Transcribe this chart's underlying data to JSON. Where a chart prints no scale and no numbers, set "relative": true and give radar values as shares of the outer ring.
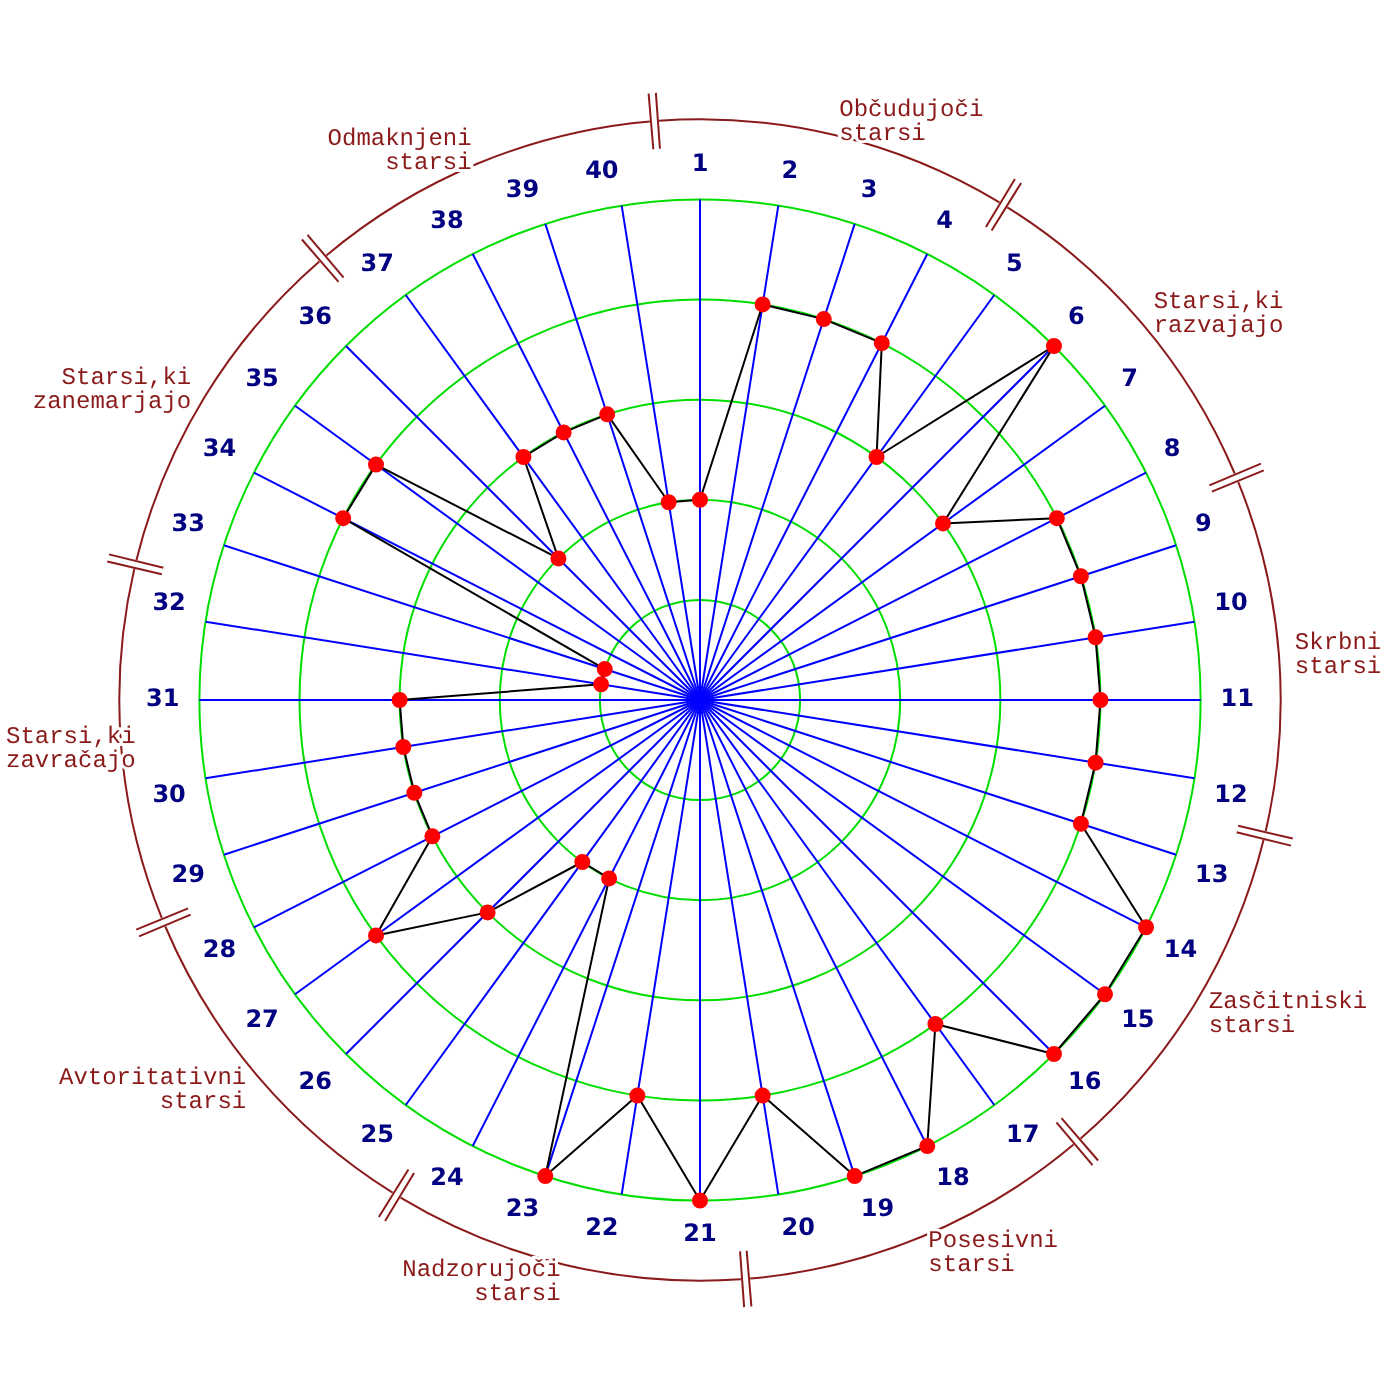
{
  "chart_data": {
    "type": "radar",
    "relative": true,
    "grid": true,
    "legend": false,
    "marker": "circle",
    "line_style": "solid",
    "categories": [
      "1",
      "2",
      "3",
      "4",
      "5",
      "6",
      "7",
      "8",
      "9",
      "10",
      "11",
      "12",
      "13",
      "14",
      "15",
      "16",
      "17",
      "18",
      "19",
      "20",
      "21",
      "22",
      "23",
      "24",
      "25",
      "26",
      "27",
      "28",
      "29",
      "30",
      "31",
      "32",
      "33",
      "34",
      "35",
      "36",
      "37",
      "38",
      "39",
      "40"
    ],
    "series": [
      {
        "color": "#000000",
        "colors": [
          "#ff0000",
          "#ff0000",
          "#ff0000",
          "#ff0000",
          "#ff0000",
          "#ff0000",
          "#ff0000",
          "#ff0000",
          "#ff0000",
          "#ff0000",
          "#ff0000",
          "#ff0000",
          "#ff0000",
          "#ff0000",
          "#ff0000",
          "#ff0000",
          "#ff0000",
          "#ff0000",
          "#ff0000",
          "#ff0000",
          "#ff0000",
          "#ff0000",
          "#ff0000",
          "#ff0000",
          "#ff0000",
          "#ff0000",
          "#ff0000",
          "#ff0000",
          "#ff0000",
          "#ff0000",
          "#ff0000",
          "#ff0000",
          "#ff0000",
          "#ff0000",
          "#ff0000",
          "#ff0000",
          "#ff0000",
          "#ff0000",
          "#ff0000",
          "#ff0000"
        ],
        "values": [
          0.4,
          0.8,
          0.8,
          0.8,
          0.6,
          1,
          0.6,
          0.8,
          0.8,
          0.8,
          0.8,
          0.8,
          0.8,
          1,
          1,
          1,
          0.8,
          1,
          1,
          0.8,
          1,
          0.8,
          1,
          0.4,
          0.4,
          0.6,
          0.8,
          0.6,
          0.6,
          0.6,
          0.6,
          0.2,
          0.2,
          0.8,
          0.8,
          0.4,
          0.6,
          0.6,
          0.6,
          0.4
        ]
      }
    ],
    "annotations": [
      "Občudujoči starsi",
      "Starsi,ki razvajajo",
      "Skrbni starsi",
      "Zasčitniski starsi",
      "Posesivni starsi",
      "Nadzorujoči starsi",
      "Avtoritativni starsi",
      "Starsi,ki zavračajo",
      "Starsi,ki zanemarjajo",
      "Odmaknjeni starsi"
    ]
  }
}
